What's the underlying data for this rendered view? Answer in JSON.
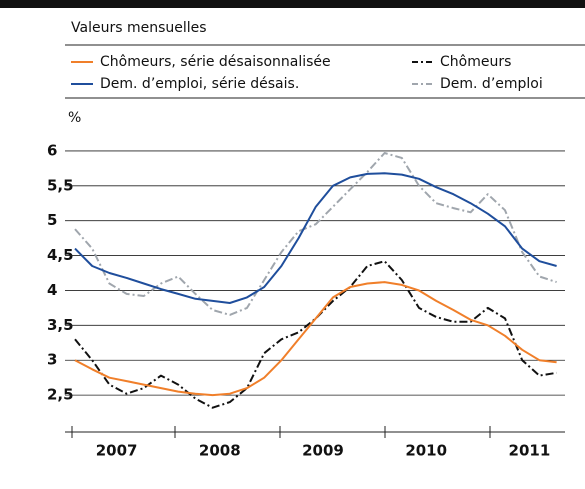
{
  "chart_data": {
    "type": "line",
    "subtitle": "Valeurs mensuelles",
    "y_unit": "%",
    "categories": [
      null,
      null,
      null,
      "2007",
      null,
      null,
      null,
      null,
      null,
      "2008",
      null,
      null,
      null,
      null,
      null,
      "2009",
      null,
      null,
      null,
      null,
      null,
      "2010",
      null,
      null,
      null,
      null,
      null,
      "2011",
      null
    ],
    "series": [
      {
        "name": "Chômeurs, série désaisonnalisée",
        "color": "#f07f2a",
        "dashed": false,
        "values": [
          3.0,
          2.87,
          2.75,
          2.7,
          2.65,
          2.6,
          2.55,
          2.52,
          2.5,
          2.52,
          2.6,
          2.75,
          3.0,
          3.3,
          3.6,
          3.9,
          4.05,
          4.1,
          4.12,
          4.08,
          4.0,
          3.85,
          3.72,
          3.58,
          3.5,
          3.35,
          3.15,
          3.0,
          2.97
        ]
      },
      {
        "name": "Dem. d’emploi, série désais.",
        "color": "#1f4e9c",
        "dashed": false,
        "values": [
          4.6,
          4.35,
          4.25,
          4.18,
          4.1,
          4.02,
          3.95,
          3.88,
          3.85,
          3.82,
          3.9,
          4.05,
          4.35,
          4.75,
          5.2,
          5.5,
          5.62,
          5.67,
          5.68,
          5.66,
          5.6,
          5.48,
          5.38,
          5.25,
          5.1,
          4.92,
          4.6,
          4.42,
          4.35
        ]
      },
      {
        "name": "Chômeurs",
        "color": "#111111",
        "dashed": true,
        "values": [
          3.3,
          3.0,
          2.65,
          2.52,
          2.6,
          2.78,
          2.65,
          2.45,
          2.32,
          2.4,
          2.6,
          3.1,
          3.3,
          3.4,
          3.6,
          3.85,
          4.05,
          4.35,
          4.42,
          4.15,
          3.75,
          3.62,
          3.55,
          3.55,
          3.75,
          3.6,
          3.0,
          2.78,
          2.82
        ]
      },
      {
        "name": "Dem. d’emploi",
        "color": "#a0a6ad",
        "dashed": true,
        "values": [
          4.88,
          4.6,
          4.1,
          3.95,
          3.92,
          4.1,
          4.2,
          3.95,
          3.72,
          3.65,
          3.75,
          4.15,
          4.55,
          4.85,
          4.95,
          5.2,
          5.45,
          5.7,
          5.97,
          5.9,
          5.5,
          5.25,
          5.18,
          5.12,
          5.38,
          5.15,
          4.55,
          4.2,
          4.12
        ]
      }
    ],
    "ylim": [
      2.1,
      6.3
    ],
    "yticks": [
      {
        "value": 2.5,
        "label": "2,5"
      },
      3,
      {
        "value": 3.5,
        "label": "3,5"
      },
      4,
      {
        "value": 4.5,
        "label": "4,5"
      },
      5,
      {
        "value": 5.5,
        "label": "5,5"
      },
      6
    ],
    "grid": true
  }
}
